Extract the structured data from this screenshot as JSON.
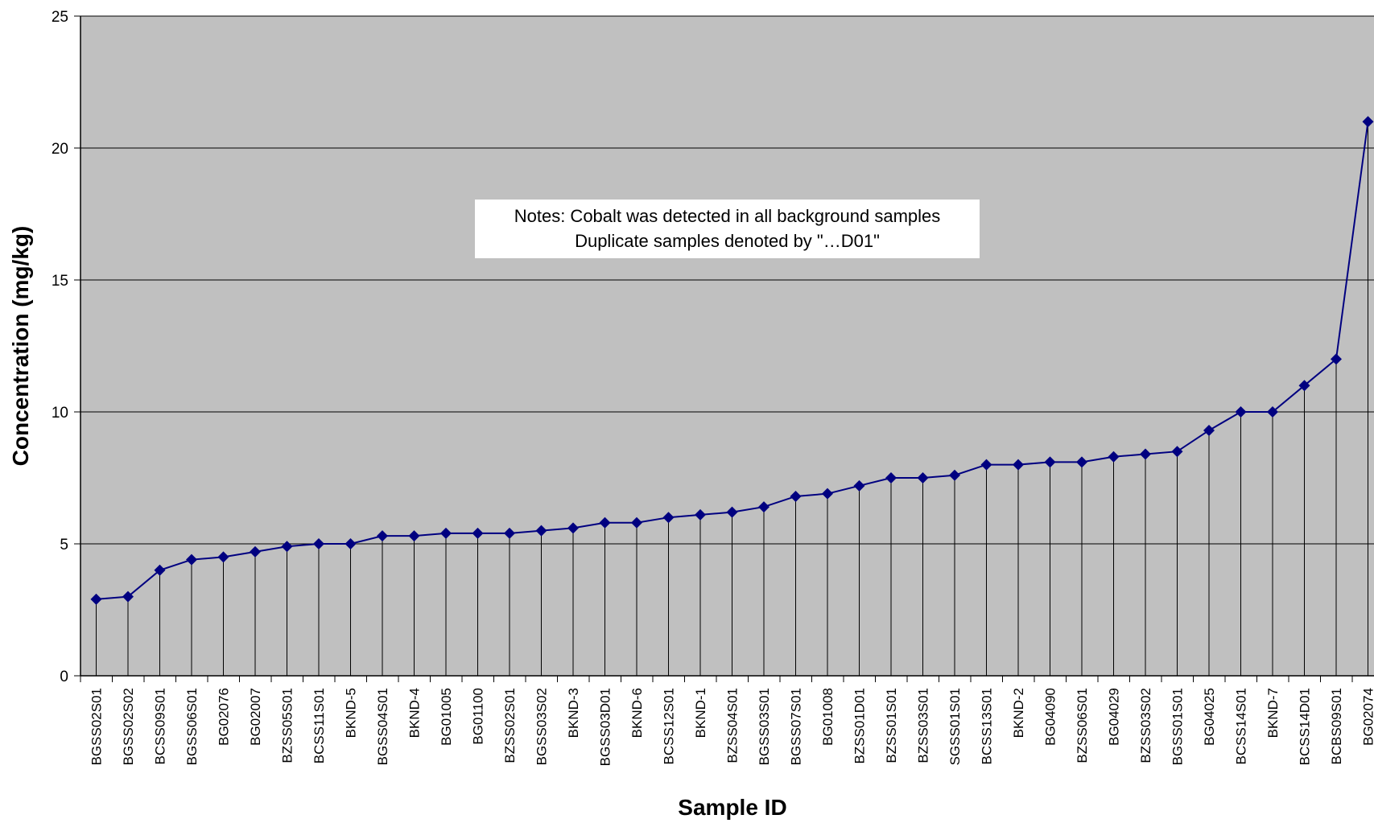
{
  "chart_data": {
    "type": "line",
    "title": "",
    "xlabel": "Sample ID",
    "ylabel": "Concentration (mg/kg)",
    "ylim": [
      0,
      25
    ],
    "yticks": [
      0,
      5,
      10,
      15,
      20,
      25
    ],
    "grid": true,
    "background": "#c0c0c0",
    "line_color": "#000080",
    "marker": "diamond",
    "drop_lines": true,
    "categories": [
      "BGSS02S01",
      "BGSS02S02",
      "BCSS09S01",
      "BGSS06S01",
      "BG02076",
      "BG02007",
      "BZSS05S01",
      "BCSS11S01",
      "BKND-5",
      "BGSS04S01",
      "BKND-4",
      "BG01005",
      "BG01100",
      "BZSS02S01",
      "BGSS03S02",
      "BKND-3",
      "BGSS03D01",
      "BKND-6",
      "BCSS12S01",
      "BKND-1",
      "BZSS04S01",
      "BGSS03S01",
      "BGSS07S01",
      "BG01008",
      "BZSS01D01",
      "BZSS01S01",
      "BZSS03S01",
      "SGSS01S01",
      "BCSS13S01",
      "BKND-2",
      "BG04090",
      "BZSS06S01",
      "BG04029",
      "BZSS03S02",
      "BGSS01S01",
      "BG04025",
      "BCSS14S01",
      "BKND-7",
      "BCSS14D01",
      "BCBS09S01",
      "BG02074"
    ],
    "values": [
      2.9,
      3.0,
      4.0,
      4.4,
      4.5,
      4.7,
      4.9,
      5.0,
      5.0,
      5.3,
      5.3,
      5.4,
      5.4,
      5.4,
      5.5,
      5.6,
      5.8,
      5.8,
      6.0,
      6.1,
      6.2,
      6.4,
      6.8,
      6.9,
      7.2,
      7.5,
      7.5,
      7.6,
      8.0,
      8.0,
      8.1,
      8.1,
      8.3,
      8.4,
      8.5,
      9.3,
      10.0,
      10.0,
      11.0,
      12.0,
      21.0
    ],
    "annotation": {
      "line1": "Notes: Cobalt was detected in all background samples",
      "line2": "Duplicate samples denoted by \"…D01\""
    }
  }
}
